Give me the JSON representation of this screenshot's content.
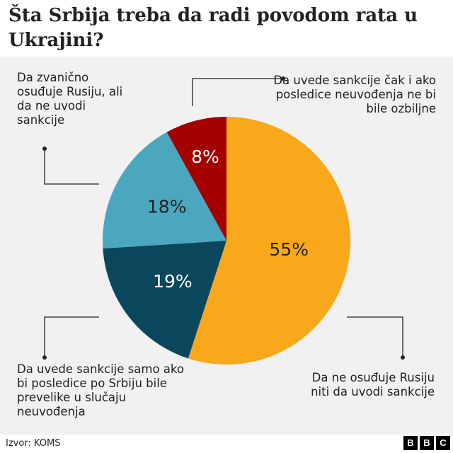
{
  "chart_data": {
    "type": "pie",
    "title": "Šta Srbija treba da radi povodom rata u Ukrajini?",
    "slices": [
      {
        "label": "Da ne osuđuje Rusiju niti da uvodi sankcije",
        "value": 55,
        "value_label": "55%",
        "color": "#f9a81b",
        "text_color": "#222222"
      },
      {
        "label": "Da uvede sankcije samo ako bi posledice po Srbiju bile prevelike u slučaju neuvođenja",
        "value": 19,
        "value_label": "19%",
        "color": "#0b475c",
        "text_color": "#ffffff"
      },
      {
        "label": "Da zvanično osuđuje Rusiju, ali da ne uvodi sankcije",
        "value": 18,
        "value_label": "18%",
        "color": "#4aa7bd",
        "text_color": "#222222"
      },
      {
        "label": "Da uvede sankcije čak i ako posledice neuvođenja ne bi bile ozbiljne",
        "value": 8,
        "value_label": "8%",
        "color": "#a40000",
        "text_color": "#ffffff"
      }
    ],
    "start_position": "top",
    "direction": "clockwise"
  },
  "source": "Izvor: KOMS",
  "logo": {
    "letters": [
      "B",
      "B",
      "C"
    ]
  }
}
